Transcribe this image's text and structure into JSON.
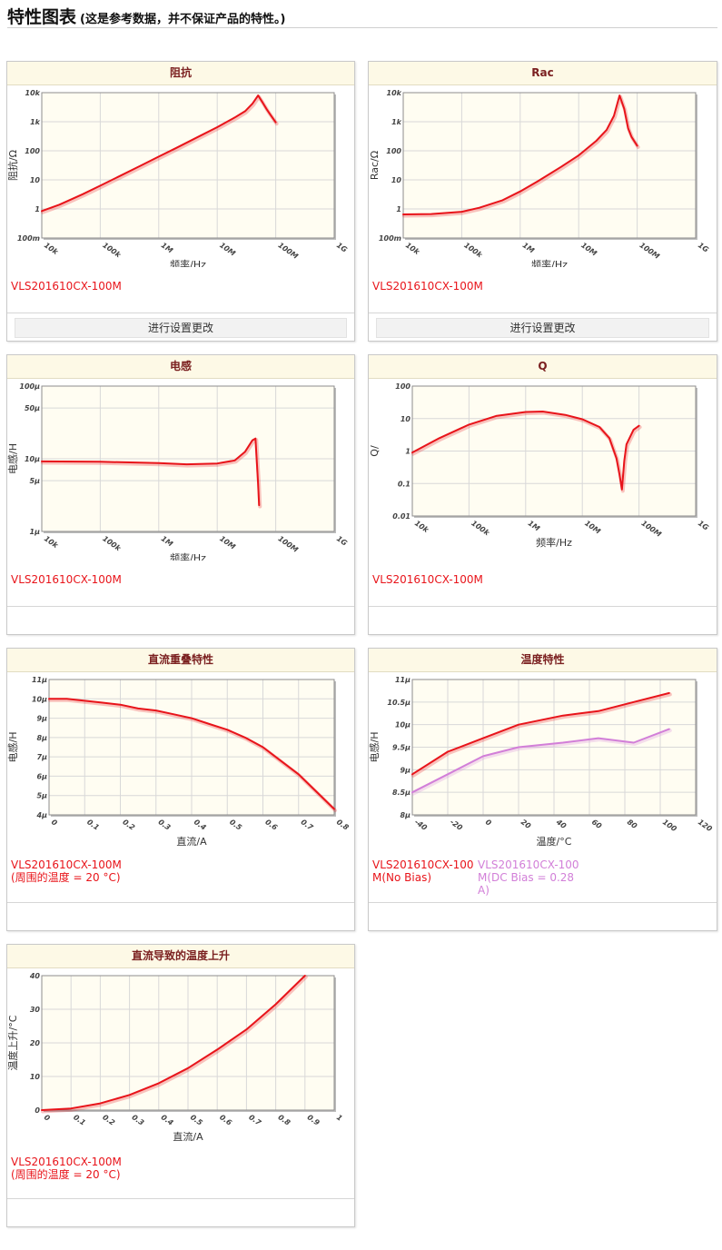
{
  "header": {
    "title": "特性图表",
    "subtitle": "(这是参考数据，并不保证产品的特性。)"
  },
  "colors": {
    "panel_header_bg": "#fdf9e6",
    "panel_title": "#7b2020",
    "plot_bg": "#fffdf2",
    "series_red": "#e8141a",
    "series_violet": "#d27fd8"
  },
  "settings_label": "进行设置更改",
  "charts": [
    {
      "id": "impedance",
      "title": "阻抗",
      "xlabel": "频率/Hz",
      "ylabel": "阻抗/Ω",
      "xscale": "log",
      "yscale": "log",
      "xlim": [
        10000,
        1000000000
      ],
      "ylim": [
        0.1,
        10000
      ],
      "xticks": [
        "10k",
        "100k",
        "1M",
        "10M",
        "100M",
        "1G"
      ],
      "yticks": [
        "100m",
        "1",
        "10",
        "100",
        "1k",
        "10k"
      ],
      "series": [
        {
          "name": "VLS201610CX-100M",
          "color": "#e8141a",
          "x": [
            10000,
            20000,
            50000,
            100000,
            200000,
            500000,
            1000000,
            2000000,
            5000000,
            10000000,
            20000000,
            30000000,
            40000000,
            50000000,
            60000000,
            70000000,
            80000000,
            100000000
          ],
          "y": [
            0.85,
            1.4,
            3.2,
            6.3,
            12.6,
            31.5,
            63,
            126,
            320,
            650,
            1400,
            2300,
            4200,
            8000,
            4500,
            2700,
            1800,
            950
          ]
        }
      ],
      "show_settings": true
    },
    {
      "id": "rac",
      "title": "Rac",
      "xlabel": "频率/Hz",
      "ylabel": "Rac/Ω",
      "xscale": "log",
      "yscale": "log",
      "xlim": [
        10000,
        1000000000
      ],
      "ylim": [
        0.1,
        10000
      ],
      "xticks": [
        "10k",
        "100k",
        "1M",
        "10M",
        "100M",
        "1G"
      ],
      "yticks": [
        "100m",
        "1",
        "10",
        "100",
        "1k",
        "10k"
      ],
      "series": [
        {
          "name": "VLS201610CX-100M",
          "color": "#e8141a",
          "x": [
            10000,
            30000,
            100000,
            200000,
            500000,
            1000000,
            2000000,
            5000000,
            10000000,
            20000000,
            30000000,
            40000000,
            50000000,
            60000000,
            70000000,
            80000000,
            100000000
          ],
          "y": [
            0.65,
            0.67,
            0.8,
            1.1,
            2.0,
            4.0,
            9.0,
            28,
            70,
            220,
            520,
            1600,
            8000,
            2800,
            600,
            300,
            150
          ]
        }
      ],
      "show_settings": true
    },
    {
      "id": "inductance",
      "title": "电感",
      "xlabel": "频率/Hz",
      "ylabel": "电感/H",
      "xscale": "log",
      "yscale": "log",
      "xlim": [
        10000,
        1000000000
      ],
      "ylim": [
        1e-06,
        0.0001
      ],
      "xticks": [
        "10k",
        "100k",
        "1M",
        "10M",
        "100M",
        "1G"
      ],
      "yticks": [
        [
          "1μ",
          1e-06
        ],
        [
          "5μ",
          5e-06
        ],
        [
          "10μ",
          1e-05
        ],
        [
          "50μ",
          5e-05
        ],
        [
          "100μ",
          0.0001
        ]
      ],
      "series": [
        {
          "name": "VLS201610CX-100M",
          "color": "#e8141a",
          "x": [
            10000,
            100000,
            1000000,
            3000000,
            10000000,
            20000000,
            30000000,
            40000000,
            45000000,
            50000000,
            52000000
          ],
          "y": [
            9.2e-06,
            9.1e-06,
            8.7e-06,
            8.4e-06,
            8.6e-06,
            9.5e-06,
            1.25e-05,
            1.8e-05,
            1.9e-05,
            4.5e-06,
            2.3e-06
          ]
        }
      ],
      "show_settings": false
    },
    {
      "id": "q",
      "title": "Q",
      "xlabel": "频率/Hz",
      "ylabel": "Q/",
      "xscale": "log",
      "yscale": "log",
      "xlim": [
        10000,
        1000000000
      ],
      "ylim": [
        0.01,
        100
      ],
      "xticks": [
        "10k",
        "100k",
        "1M",
        "10M",
        "100M",
        "1G"
      ],
      "yticks": [
        "0.01",
        "0.1",
        "1",
        "10",
        "100"
      ],
      "series": [
        {
          "name": "VLS201610CX-100M",
          "color": "#e8141a",
          "x": [
            10000,
            30000,
            100000,
            300000,
            1000000,
            2000000,
            5000000,
            10000000,
            20000000,
            30000000,
            40000000,
            45000000,
            50000000,
            55000000,
            60000000,
            80000000,
            100000000
          ],
          "y": [
            0.9,
            2.5,
            6.5,
            12,
            16,
            16.5,
            13,
            9.5,
            5.5,
            2.5,
            0.6,
            0.2,
            0.065,
            0.5,
            1.6,
            4.5,
            6.0
          ]
        }
      ],
      "show_settings": false
    },
    {
      "id": "dc-superposition",
      "title": "直流重叠特性",
      "xlabel": "直流/A",
      "ylabel": "电感/H",
      "xscale": "linear",
      "yscale": "linear",
      "xlim": [
        0,
        0.8
      ],
      "ylim": [
        4e-06,
        1.1e-05
      ],
      "xticks": [
        [
          "0",
          0
        ],
        [
          "0.1",
          0.1
        ],
        [
          "0.2",
          0.2
        ],
        [
          "0.3",
          0.3
        ],
        [
          "0.4",
          0.4
        ],
        [
          "0.5",
          0.5
        ],
        [
          "0.6",
          0.6
        ],
        [
          "0.7",
          0.7
        ],
        [
          "0.8",
          0.8
        ]
      ],
      "yticks": [
        [
          "4μ",
          4e-06
        ],
        [
          "5μ",
          5e-06
        ],
        [
          "6μ",
          6e-06
        ],
        [
          "7μ",
          7e-06
        ],
        [
          "8μ",
          8e-06
        ],
        [
          "9μ",
          9e-06
        ],
        [
          "10μ",
          1e-05
        ],
        [
          "11μ",
          1.1e-05
        ]
      ],
      "series": [
        {
          "name": "VLS201610CX-100M\n(周围的温度 = 20 °C)",
          "color": "#e8141a",
          "x": [
            0,
            0.05,
            0.1,
            0.15,
            0.2,
            0.25,
            0.3,
            0.35,
            0.4,
            0.45,
            0.5,
            0.55,
            0.6,
            0.65,
            0.7,
            0.75,
            0.8
          ],
          "y": [
            1e-05,
            1e-05,
            9.9e-06,
            9.8e-06,
            9.7e-06,
            9.5e-06,
            9.4e-06,
            9.2e-06,
            9e-06,
            8.7e-06,
            8.4e-06,
            8e-06,
            7.5e-06,
            6.8e-06,
            6.1e-06,
            5.2e-06,
            4.3e-06
          ]
        }
      ],
      "show_settings": false
    },
    {
      "id": "temperature",
      "title": "温度特性",
      "xlabel": "温度/°C",
      "ylabel": "电感/H",
      "xscale": "linear",
      "yscale": "linear",
      "xlim": [
        -40,
        120
      ],
      "ylim": [
        8e-06,
        1.1e-05
      ],
      "xticks": [
        [
          "-40",
          -40
        ],
        [
          "-20",
          -20
        ],
        [
          "0",
          0
        ],
        [
          "20",
          20
        ],
        [
          "40",
          40
        ],
        [
          "60",
          60
        ],
        [
          "80",
          80
        ],
        [
          "100",
          100
        ],
        [
          "120",
          120
        ]
      ],
      "yticks": [
        [
          "8μ",
          8e-06
        ],
        [
          "8.5μ",
          8.5e-06
        ],
        [
          "9μ",
          9e-06
        ],
        [
          "9.5μ",
          9.5e-06
        ],
        [
          "10μ",
          1e-05
        ],
        [
          "10.5μ",
          1.05e-05
        ],
        [
          "11μ",
          1.1e-05
        ]
      ],
      "series": [
        {
          "name": "VLS201610CX-100M(No Bias)",
          "color": "#e8141a",
          "x": [
            -40,
            -20,
            0,
            20,
            45,
            65,
            85,
            105
          ],
          "y": [
            8.9e-06,
            9.4e-06,
            9.7e-06,
            1e-05,
            1.02e-05,
            1.03e-05,
            1.05e-05,
            1.07e-05
          ]
        },
        {
          "name": "VLS201610CX-100M(DC Bias = 0.28A)",
          "color": "#d27fd8",
          "x": [
            -40,
            -20,
            0,
            20,
            45,
            65,
            85,
            105
          ],
          "y": [
            8.5e-06,
            8.9e-06,
            9.3e-06,
            9.5e-06,
            9.6e-06,
            9.7e-06,
            9.6e-06,
            9.9e-06
          ]
        }
      ],
      "show_settings": false
    },
    {
      "id": "temperature-rise",
      "title": "直流导致的温度上升",
      "xlabel": "直流/A",
      "ylabel": "温度上升/°C",
      "xscale": "linear",
      "yscale": "linear",
      "xlim": [
        0,
        1
      ],
      "ylim": [
        0,
        40
      ],
      "xticks": [
        [
          "0",
          0
        ],
        [
          "0.1",
          0.1
        ],
        [
          "0.2",
          0.2
        ],
        [
          "0.3",
          0.3
        ],
        [
          "0.4",
          0.4
        ],
        [
          "0.5",
          0.5
        ],
        [
          "0.6",
          0.6
        ],
        [
          "0.7",
          0.7
        ],
        [
          "0.8",
          0.8
        ],
        [
          "0.9",
          0.9
        ],
        [
          "1",
          1
        ]
      ],
      "yticks": [
        [
          "0",
          0
        ],
        [
          "10",
          10
        ],
        [
          "20",
          20
        ],
        [
          "30",
          30
        ],
        [
          "40",
          40
        ]
      ],
      "series": [
        {
          "name": "VLS201610CX-100M\n(周围的温度 = 20 °C)",
          "color": "#e8141a",
          "x": [
            0,
            0.1,
            0.2,
            0.3,
            0.4,
            0.5,
            0.6,
            0.7,
            0.8,
            0.9
          ],
          "y": [
            0,
            0.5,
            2,
            4.5,
            8,
            12.5,
            18,
            24,
            31.5,
            40
          ]
        }
      ],
      "show_settings": false
    }
  ]
}
